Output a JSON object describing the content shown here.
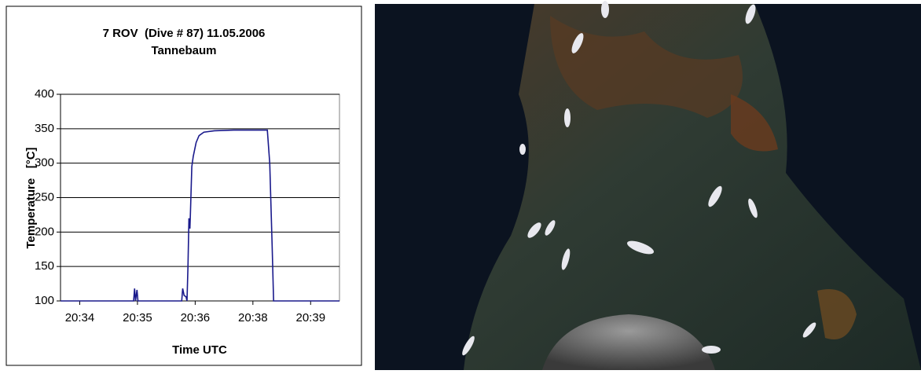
{
  "chart_data": {
    "type": "line",
    "title": "7 ROV  (Dive # 87) 11.05.2006",
    "subtitle": "Tannebaum",
    "x_label": "Time UTC",
    "y_label": "Temperature   [°C]",
    "x": [
      1233.6,
      1235.12,
      1235.14,
      1235.16,
      1235.19,
      1235.21,
      1236.12,
      1236.14,
      1236.17,
      1236.21,
      1236.23,
      1236.25,
      1236.27,
      1236.29,
      1236.3,
      1236.33,
      1236.36,
      1236.42,
      1236.48,
      1236.58,
      1236.8,
      1237.2,
      1237.6,
      1237.9,
      1237.95,
      1238.0,
      1238.03,
      1239.4
    ],
    "series": [
      {
        "color": "#1a1a8c",
        "values": [
          100,
          100,
          118,
          100,
          116,
          100,
          100,
          118,
          108,
          106,
          100,
          150,
          220,
          205,
          225,
          295,
          310,
          330,
          340,
          345,
          347,
          348,
          348,
          348,
          300,
          180,
          100,
          100
        ]
      }
    ],
    "xlim": [
      1233.6,
      1239.4
    ],
    "xticks": [
      {
        "value": 1234.0,
        "label": "20:34"
      },
      {
        "value": 1235.2,
        "label": "20:35"
      },
      {
        "value": 1236.4,
        "label": "20:36"
      },
      {
        "value": 1237.6,
        "label": "20:38"
      },
      {
        "value": 1238.8,
        "label": "20:39"
      }
    ],
    "ylim": [
      100,
      400
    ],
    "yticks": [
      100,
      150,
      200,
      250,
      300,
      350,
      400
    ],
    "grid": true
  }
}
